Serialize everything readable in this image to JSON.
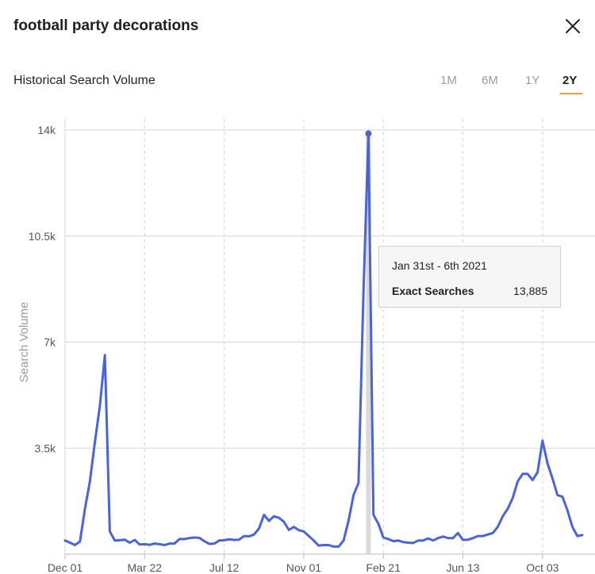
{
  "header": {
    "title": "football party decorations",
    "close_icon": "close-icon"
  },
  "section": {
    "title": "Historical Search Volume"
  },
  "time_ranges": [
    {
      "label": "1M",
      "active": false
    },
    {
      "label": "6M",
      "active": false
    },
    {
      "label": "1Y",
      "active": false
    },
    {
      "label": "2Y",
      "active": true
    }
  ],
  "colors": {
    "line": "#4a63d8",
    "accent": "#e8a33a",
    "grid": "#d6d6d6",
    "axis_text": "#555555",
    "ylabel": "#9a9a9a",
    "highlight_bar": "#d9d9d9"
  },
  "tooltip": {
    "date": "Jan 31st - 6th 2021",
    "label": "Exact Searches",
    "value": "13,885"
  },
  "chart_data": {
    "type": "line",
    "ylabel": "Search Volume",
    "ylim": [
      0,
      14000
    ],
    "yticks": [
      "3.5k",
      "7k",
      "10.5k",
      "14k"
    ],
    "ytick_values": [
      3500,
      7000,
      10500,
      14000
    ],
    "xticks": [
      "Dec 01",
      "Mar 22",
      "Jul 12",
      "Nov 01",
      "Feb 21",
      "Jun 13",
      "Oct 03"
    ],
    "xtick_weeks": [
      0,
      16,
      32,
      48,
      64,
      80,
      96
    ],
    "highlight_week": 61,
    "grid": true,
    "series": [
      {
        "values": [
          450,
          380,
          300,
          420,
          1500,
          2400,
          3700,
          4900,
          6570,
          750,
          450,
          460,
          480,
          380,
          470,
          320,
          330,
          310,
          350,
          330,
          300,
          350,
          350,
          500,
          500,
          530,
          550,
          540,
          430,
          340,
          350,
          450,
          460,
          490,
          470,
          480,
          600,
          590,
          650,
          850,
          1300,
          1100,
          1250,
          1200,
          1070,
          800,
          900,
          790,
          750,
          600,
          450,
          280,
          300,
          300,
          250,
          250,
          450,
          1100,
          1950,
          2350,
          8700,
          13885,
          1300,
          1000,
          550,
          500,
          430,
          450,
          400,
          380,
          370,
          450,
          450,
          520,
          450,
          530,
          580,
          530,
          530,
          700,
          470,
          480,
          530,
          600,
          600,
          650,
          700,
          900,
          1250,
          1500,
          1850,
          2400,
          2650,
          2650,
          2450,
          2700,
          3750,
          3000,
          2500,
          1950,
          1900,
          1450,
          900,
          600,
          630
        ]
      }
    ]
  }
}
